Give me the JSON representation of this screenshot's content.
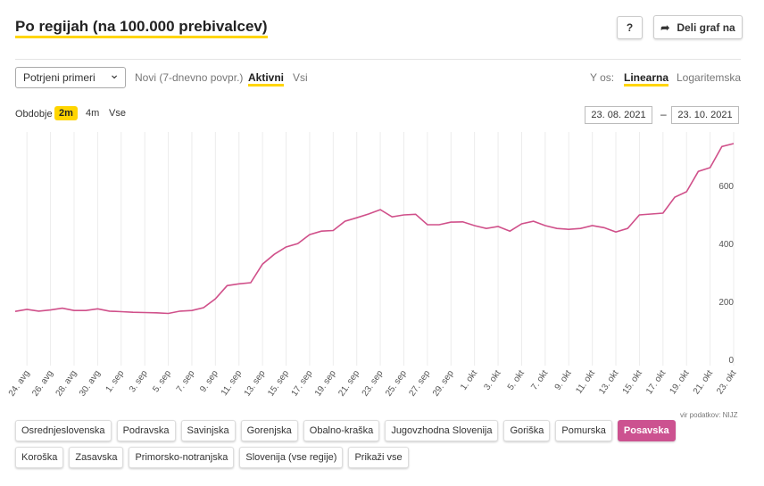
{
  "header": {
    "title": "Po regijah (na 100.000 prebivalcev)",
    "help": "?",
    "share": "Deli graf na"
  },
  "controls": {
    "measure": "Potrjeni primeri",
    "modes": [
      "Novi (7-dnevno povpr.)",
      "Aktivni",
      "Vsi"
    ],
    "yaxis_label": "Y os:",
    "yaxis_modes": [
      "Linearna",
      "Logaritemska"
    ],
    "period_label": "Obdobje",
    "periods": [
      "2m",
      "4m",
      "Vse"
    ],
    "date_from": "23. 08. 2021",
    "date_sep": "–",
    "date_to": "23. 10. 2021"
  },
  "source": "vir podatkov: NIJZ",
  "regions": {
    "items": [
      "Osrednjeslovenska",
      "Podravska",
      "Savinjska",
      "Gorenjska",
      "Obalno-kraška",
      "Jugovzhodna Slovenija",
      "Goriška",
      "Pomurska",
      "Posavska",
      "Koroška",
      "Zasavska",
      "Primorsko-notranjska",
      "Slovenija (vse regije)",
      "Prikaži vse"
    ],
    "selected": 8
  },
  "chart_data": {
    "type": "line",
    "color": "#d0508a",
    "xgrid": true,
    "categories": [
      null,
      "24. avg",
      null,
      "26. avg",
      null,
      "28. avg",
      null,
      "30. avg",
      null,
      "1. sep",
      null,
      "3. sep",
      null,
      "5. sep",
      null,
      "7. sep",
      null,
      "9. sep",
      null,
      "11. sep",
      null,
      "13. sep",
      null,
      "15. sep",
      null,
      "17. sep",
      null,
      "19. sep",
      null,
      "21. sep",
      null,
      "23. sep",
      null,
      "25. sep",
      null,
      "27. sep",
      null,
      "29. sep",
      null,
      "1. okt",
      null,
      "3. okt",
      null,
      "5. okt",
      null,
      "7. okt",
      null,
      "9. okt",
      null,
      "11. okt",
      null,
      "13. okt",
      null,
      "15. okt",
      null,
      "17. okt",
      null,
      "19. okt",
      null,
      "21. okt",
      null,
      "23. okt"
    ],
    "values": [
      169,
      176,
      170,
      174,
      180,
      172,
      172,
      178,
      170,
      168,
      166,
      165,
      164,
      162,
      170,
      172,
      182,
      212,
      258,
      264,
      268,
      332,
      366,
      391,
      403,
      434,
      446,
      448,
      480,
      492,
      505,
      520,
      495,
      502,
      504,
      468,
      468,
      477,
      478,
      465,
      455,
      462,
      446,
      471,
      480,
      465,
      455,
      452,
      455,
      465,
      458,
      443,
      455,
      502,
      505,
      508,
      563,
      582,
      652,
      665,
      738,
      748
    ],
    "ylim": [
      -18,
      788
    ],
    "yticks": [
      0,
      200,
      400,
      600
    ]
  }
}
